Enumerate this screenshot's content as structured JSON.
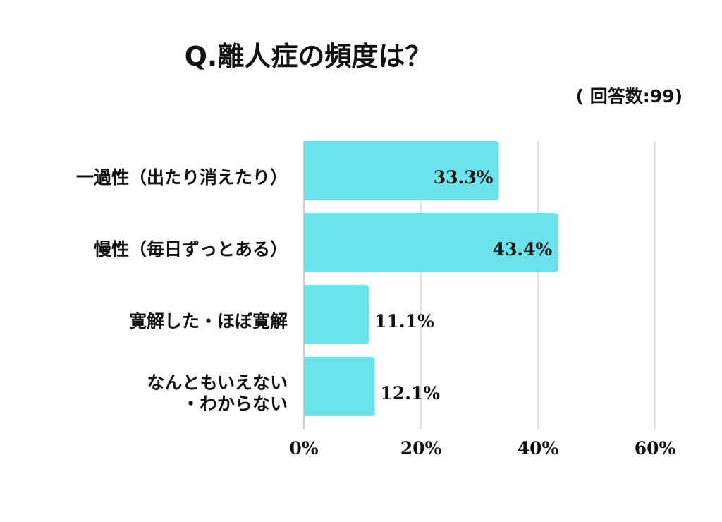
{
  "chart_data": {
    "type": "bar",
    "orientation": "horizontal",
    "title": "Q.離人症の頻度は？",
    "subtitle": "( 回答数:99)",
    "categories": [
      [
        "一過性（出たり消えたり）"
      ],
      [
        "慢性（毎日ずっとある）"
      ],
      [
        "寛解した・ほぼ寛解"
      ],
      [
        "なんともいえない",
        "・わからない"
      ]
    ],
    "values": [
      33.3,
      43.4,
      11.1,
      12.1
    ],
    "value_labels": [
      "33.3%",
      "43.4%",
      "11.1%",
      "12.1%"
    ],
    "xlim": [
      0,
      60
    ],
    "xticks": [
      "0%",
      "20%",
      "40%",
      "60%"
    ],
    "grid": true,
    "bar_color": "#6ae4ea",
    "grid_color": "#d9d9d9"
  }
}
